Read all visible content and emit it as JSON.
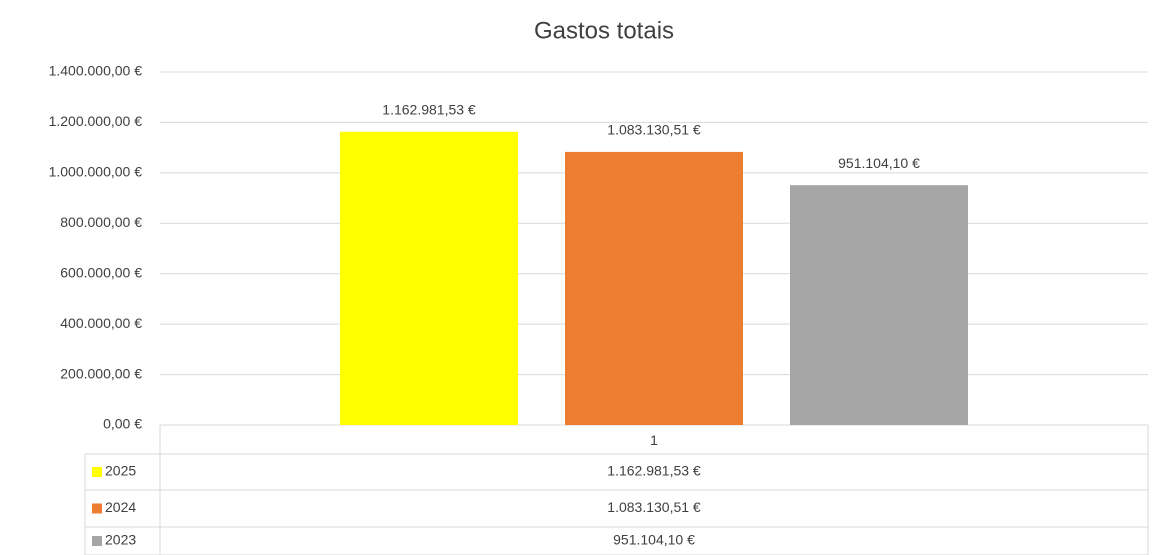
{
  "chart_data": {
    "type": "bar",
    "title": "Gastos totais",
    "categories": [
      "1"
    ],
    "series": [
      {
        "name": "2025",
        "color": "#ffff00",
        "values": [
          1162981.53
        ],
        "value_labels": [
          "1.162.981,53 €"
        ]
      },
      {
        "name": "2024",
        "color": "#ed7d31",
        "values": [
          1083130.51
        ],
        "value_labels": [
          "1.083.130,51 €"
        ]
      },
      {
        "name": "2023",
        "color": "#a5a5a5",
        "values": [
          951104.1
        ],
        "value_labels": [
          "951.104,10 €"
        ]
      }
    ],
    "ylim": [
      0,
      1400000
    ],
    "yticks": [
      {
        "value": 0,
        "label": "0,00 €"
      },
      {
        "value": 200000,
        "label": "200.000,00 €"
      },
      {
        "value": 400000,
        "label": "400.000,00 €"
      },
      {
        "value": 600000,
        "label": "600.000,00 €"
      },
      {
        "value": 800000,
        "label": "800.000,00 €"
      },
      {
        "value": 1000000,
        "label": "1.000.000,00 €"
      },
      {
        "value": 1200000,
        "label": "1.200.000,00 €"
      },
      {
        "value": 1400000,
        "label": "1.400.000,00 €"
      }
    ],
    "grid": true
  }
}
